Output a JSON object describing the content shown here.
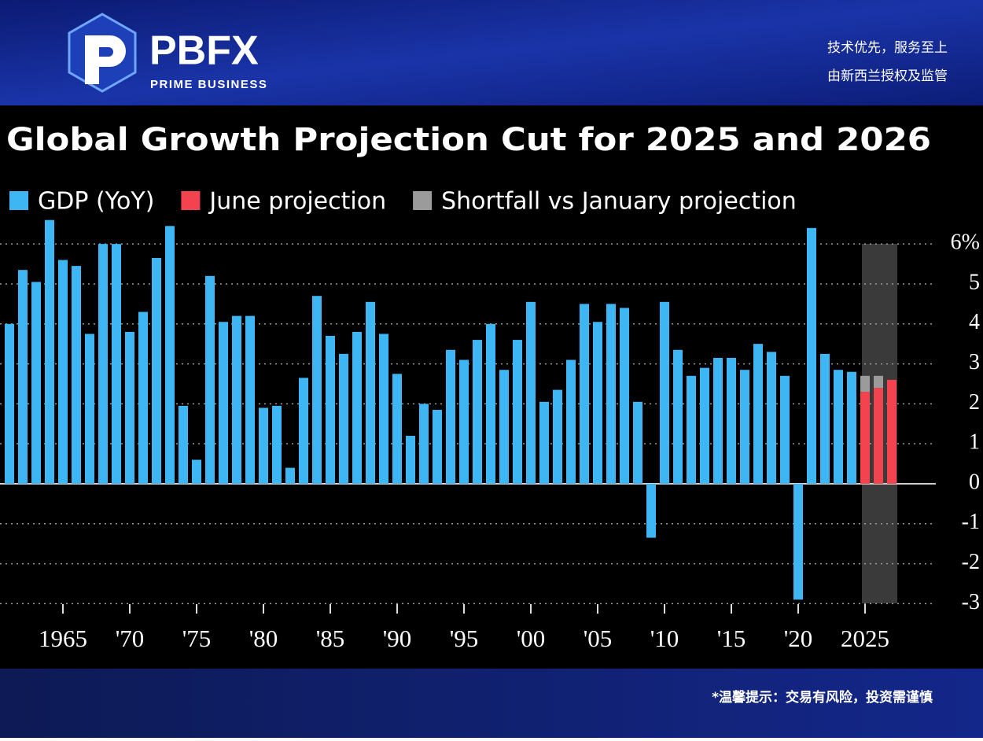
{
  "header": {
    "logo": "PBFX",
    "tagline": "PRIME BUSINESS",
    "slogans": [
      "技术优先，服务至上",
      "由新西兰授权及监管"
    ]
  },
  "footer": {
    "notice": "*温馨提示：交易有风险，投资需谨慎"
  },
  "chart_data": {
    "type": "bar",
    "stacked": true,
    "title": "Global Growth Projection Cut for 2025 and 2026",
    "categories": [
      null,
      null,
      null,
      null,
      "1965",
      null,
      null,
      null,
      null,
      "'70",
      null,
      null,
      null,
      null,
      "'75",
      null,
      null,
      null,
      null,
      "'80",
      null,
      null,
      null,
      null,
      "'85",
      null,
      null,
      null,
      null,
      "'90",
      null,
      null,
      null,
      null,
      "'95",
      null,
      null,
      null,
      null,
      "'00",
      null,
      null,
      null,
      null,
      "'05",
      null,
      null,
      null,
      null,
      "'10",
      null,
      null,
      null,
      null,
      "'15",
      null,
      null,
      null,
      null,
      "'20",
      null,
      null,
      null,
      null,
      "2025",
      null,
      null
    ],
    "series": [
      {
        "name": "GDP (YoY)",
        "color": "#3fb6f4",
        "values": [
          4.0,
          5.35,
          5.05,
          6.6,
          5.6,
          5.45,
          3.75,
          6.0,
          6.0,
          3.8,
          4.3,
          5.65,
          6.45,
          1.95,
          0.6,
          5.2,
          4.05,
          4.2,
          4.2,
          1.9,
          1.95,
          0.4,
          2.65,
          4.7,
          3.7,
          3.25,
          3.8,
          4.55,
          3.75,
          2.75,
          1.2,
          2.0,
          1.85,
          3.35,
          3.1,
          3.6,
          4.0,
          2.85,
          3.6,
          4.55,
          2.05,
          2.35,
          3.1,
          4.5,
          4.05,
          4.5,
          4.4,
          2.05,
          -1.35,
          4.55,
          3.35,
          2.7,
          2.9,
          3.15,
          3.15,
          2.85,
          3.5,
          3.3,
          2.7,
          -2.9,
          6.4,
          3.25,
          2.85,
          2.8,
          null,
          null,
          null
        ]
      },
      {
        "name": "June projection",
        "color": "#f2434f",
        "values": [
          null,
          null,
          null,
          null,
          null,
          null,
          null,
          null,
          null,
          null,
          null,
          null,
          null,
          null,
          null,
          null,
          null,
          null,
          null,
          null,
          null,
          null,
          null,
          null,
          null,
          null,
          null,
          null,
          null,
          null,
          null,
          null,
          null,
          null,
          null,
          null,
          null,
          null,
          null,
          null,
          null,
          null,
          null,
          null,
          null,
          null,
          null,
          null,
          null,
          null,
          null,
          null,
          null,
          null,
          null,
          null,
          null,
          null,
          null,
          null,
          null,
          null,
          null,
          null,
          2.3,
          2.4,
          2.6
        ]
      },
      {
        "name": "Shortfall vs January projection",
        "color": "#9b9b9b",
        "values": [
          null,
          null,
          null,
          null,
          null,
          null,
          null,
          null,
          null,
          null,
          null,
          null,
          null,
          null,
          null,
          null,
          null,
          null,
          null,
          null,
          null,
          null,
          null,
          null,
          null,
          null,
          null,
          null,
          null,
          null,
          null,
          null,
          null,
          null,
          null,
          null,
          null,
          null,
          null,
          null,
          null,
          null,
          null,
          null,
          null,
          null,
          null,
          null,
          null,
          null,
          null,
          null,
          null,
          null,
          null,
          null,
          null,
          null,
          null,
          null,
          null,
          null,
          null,
          null,
          0.4,
          0.3,
          null
        ]
      }
    ],
    "ylim": [
      -3,
      6.7
    ],
    "yticks": [
      -3,
      -2,
      -1,
      0,
      1,
      2,
      3,
      4,
      5,
      {
        "value": 6,
        "label": "6%"
      }
    ],
    "grid": true
  }
}
